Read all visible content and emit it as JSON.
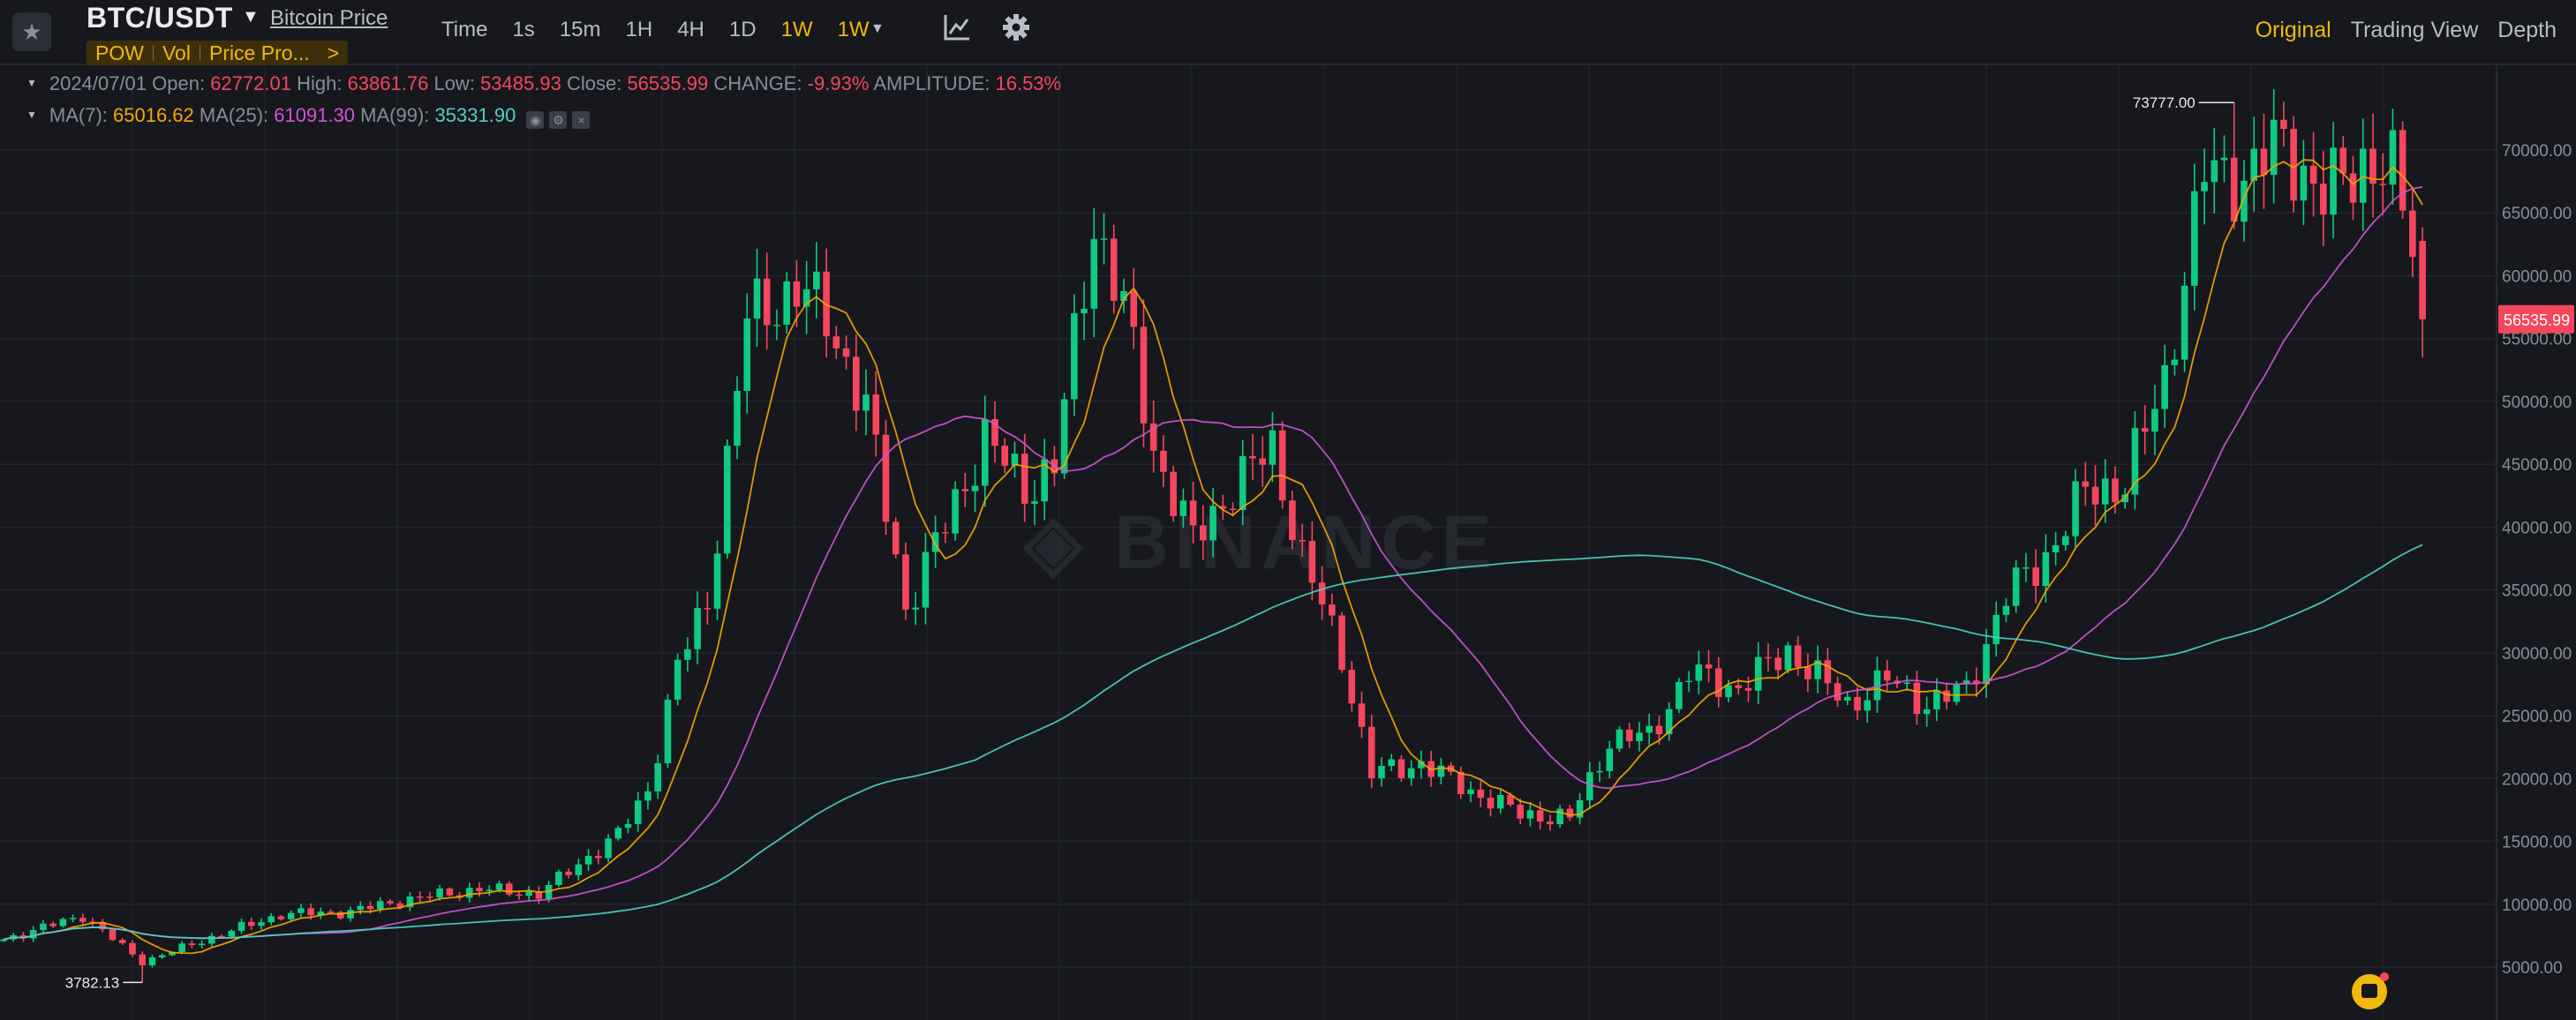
{
  "header": {
    "pair": "BTC/USDT",
    "coin_link": "Bitcoin Price",
    "tags": [
      "POW",
      "Vol",
      "Price Pro...",
      ">"
    ],
    "intervals": [
      "Time",
      "1s",
      "15m",
      "1H",
      "4H",
      "1D",
      "1W",
      "1W"
    ],
    "active_interval": "1W",
    "views": [
      "Original",
      "Trading View",
      "Depth"
    ],
    "active_view": "Original"
  },
  "legend": {
    "date": "2024/07/01",
    "open_label": "Open:",
    "open": "62772.01",
    "high_label": "High:",
    "high": "63861.76",
    "low_label": "Low:",
    "low": "53485.93",
    "close_label": "Close:",
    "close": "56535.99",
    "change_label": "CHANGE:",
    "change": "-9.93%",
    "amplitude_label": "AMPLITUDE:",
    "amplitude": "16.53%",
    "ma7_label": "MA(7):",
    "ma7": "65016.62",
    "ma25_label": "MA(25):",
    "ma25": "61091.30",
    "ma99_label": "MA(99):",
    "ma99": "35331.90"
  },
  "colors": {
    "up": "#0ecb81",
    "down": "#f6465d",
    "ma7": "#f7a600",
    "ma25": "#d254d4",
    "ma99": "#4fd1c5",
    "accent": "#f0b90b",
    "background": "#16181d"
  },
  "icons": [
    "star-icon",
    "caret-down-icon",
    "indicator-chart-icon",
    "gear-icon",
    "assistant-bot-icon"
  ],
  "chart_data": {
    "type": "candlestick",
    "symbol": "BTC/USDT",
    "interval": "1W",
    "y_ticks": [
      5000,
      10000,
      15000,
      20000,
      25000,
      30000,
      35000,
      40000,
      45000,
      50000,
      55000,
      60000,
      65000,
      70000
    ],
    "y_tick_labels": [
      "5000.00",
      "10000.00",
      "15000.00",
      "20000.00",
      "25000.00",
      "30000.00",
      "35000.00",
      "40000.00",
      "45000.00",
      "50000.00",
      "55000.00",
      "60000.00",
      "65000.00",
      "70000.00"
    ],
    "ylim": [
      1500,
      75500
    ],
    "last_price": 56535.99,
    "last_price_label": "56535.99",
    "max_marker": {
      "value": 73777.0,
      "label": "73777.00"
    },
    "min_marker": {
      "value": 3782.13,
      "label": "3782.13"
    },
    "close_anchors": [
      [
        0,
        7200
      ],
      [
        8,
        9100
      ],
      [
        14,
        5400
      ],
      [
        20,
        7100
      ],
      [
        28,
        9200
      ],
      [
        35,
        9400
      ],
      [
        40,
        10300
      ],
      [
        48,
        11200
      ],
      [
        54,
        10800
      ],
      [
        58,
        13200
      ],
      [
        62,
        15500
      ],
      [
        65,
        19100
      ],
      [
        68,
        28900
      ],
      [
        71,
        34100
      ],
      [
        75,
        56600
      ],
      [
        80,
        58900
      ],
      [
        83,
        56800
      ],
      [
        87,
        49400
      ],
      [
        91,
        33600
      ],
      [
        95,
        40200
      ],
      [
        99,
        47100
      ],
      [
        103,
        43100
      ],
      [
        106,
        44800
      ],
      [
        110,
        64300
      ],
      [
        113,
        57400
      ],
      [
        116,
        46200
      ],
      [
        120,
        38900
      ],
      [
        124,
        43200
      ],
      [
        128,
        46300
      ],
      [
        131,
        37600
      ],
      [
        135,
        29800
      ],
      [
        138,
        20400
      ],
      [
        143,
        21200
      ],
      [
        148,
        19000
      ],
      [
        153,
        17200
      ],
      [
        158,
        16800
      ],
      [
        162,
        23000
      ],
      [
        166,
        23400
      ],
      [
        170,
        28400
      ],
      [
        175,
        27200
      ],
      [
        180,
        30200
      ],
      [
        186,
        25900
      ],
      [
        190,
        27900
      ],
      [
        194,
        25900
      ],
      [
        198,
        27100
      ],
      [
        202,
        34500
      ],
      [
        206,
        37700
      ],
      [
        210,
        42800
      ],
      [
        214,
        43500
      ],
      [
        218,
        51800
      ],
      [
        222,
        68200
      ],
      [
        226,
        67800
      ],
      [
        230,
        70600
      ],
      [
        234,
        66100
      ],
      [
        238,
        69200
      ],
      [
        241,
        67900
      ],
      [
        243,
        62700
      ],
      [
        244,
        56535.99
      ]
    ],
    "candle_count": 245
  }
}
